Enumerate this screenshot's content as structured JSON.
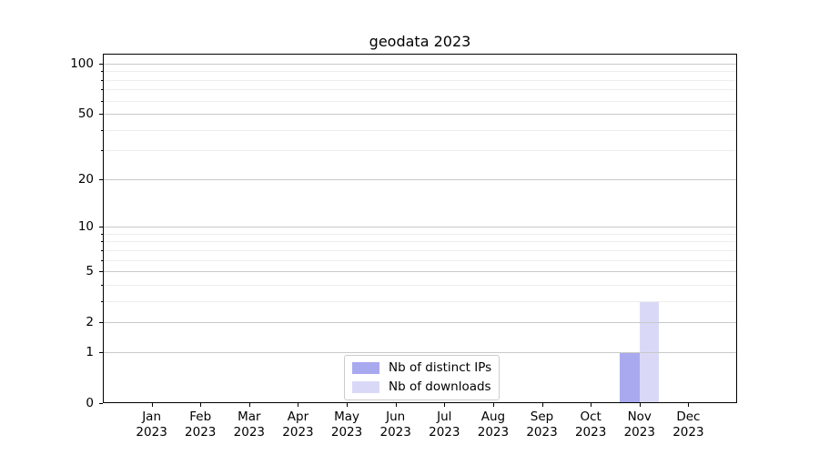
{
  "chart_data": {
    "type": "bar",
    "title": "geodata 2023",
    "xlabel": "",
    "ylabel": "",
    "yscale": "log1p (symlog-like axis that includes 0)",
    "ylim": [
      0,
      115
    ],
    "y_major_ticks": [
      0,
      1,
      2,
      5,
      10,
      20,
      50,
      100
    ],
    "y_minor_gridlines": [
      3,
      4,
      6,
      7,
      8,
      9,
      30,
      40,
      60,
      70,
      80,
      90
    ],
    "grid": "horizontal major and minor gridlines, drawn over bars",
    "legend_position": "lower center",
    "categories": [
      "Jan\n2023",
      "Feb\n2023",
      "Mar\n2023",
      "Apr\n2023",
      "May\n2023",
      "Jun\n2023",
      "Jul\n2023",
      "Aug\n2023",
      "Sep\n2023",
      "Oct\n2023",
      "Nov\n2023",
      "Dec\n2023"
    ],
    "series": [
      {
        "name": "Nb of distinct IPs",
        "color": "#a9a9f0",
        "values": [
          0,
          0,
          0,
          0,
          0,
          0,
          0,
          0,
          0,
          0,
          1,
          0
        ]
      },
      {
        "name": "Nb of downloads",
        "color": "#d9d9f7",
        "values": [
          0,
          0,
          0,
          0,
          0,
          0,
          0,
          0,
          0,
          0,
          3,
          0
        ]
      }
    ],
    "colors": {
      "grid_major": "#c9c9c9",
      "grid_minor": "#ededed",
      "spine": "#000000",
      "text": "#000000",
      "background": "#ffffff",
      "legend_border": "#cccccc"
    }
  }
}
